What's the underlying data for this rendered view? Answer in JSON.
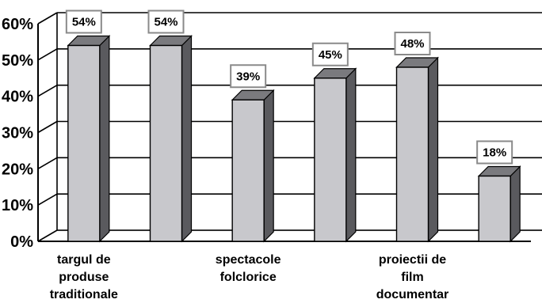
{
  "chart_data": {
    "type": "bar",
    "categories": [
      [
        "targul de",
        "produse",
        "traditionale"
      ],
      [],
      [
        "spectacole",
        "folclorice"
      ],
      [],
      [
        "proiectii de",
        "film",
        "documentar"
      ],
      []
    ],
    "values": [
      54,
      54,
      39,
      45,
      48,
      18
    ],
    "data_labels": [
      "54%",
      "54%",
      "39%",
      "45%",
      "48%",
      "18%"
    ],
    "y_ticks": [
      "0%",
      "10%",
      "20%",
      "30%",
      "40%",
      "50%",
      "60%"
    ],
    "ylim": [
      0,
      60
    ],
    "grid": true,
    "title": "",
    "xlabel": "",
    "ylabel": "",
    "colors": {
      "bar_front": "#c8c8cc",
      "bar_side": "#5a5a5e",
      "bar_top": "#7a7a7e",
      "grid": "#000000",
      "label_box": "#8a8a8a"
    }
  }
}
